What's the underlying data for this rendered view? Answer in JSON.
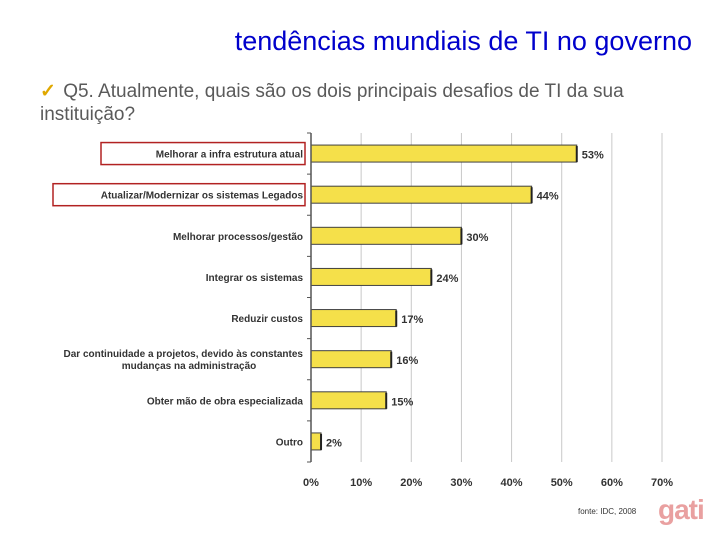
{
  "header": {
    "title": "tendências mundiais de TI no governo",
    "check_glyph": "✓",
    "question": "Q5. Atualmente, quais são os dois principais desafios de TI da sua instituição?"
  },
  "footer": {
    "source": "fonte: IDC, 2008",
    "logo": "gati"
  },
  "colors": {
    "bar_fill": "#f5e04a",
    "bar_stroke": "#404040",
    "highlight_box": "#b22222",
    "title": "#0000cc"
  },
  "chart_data": {
    "type": "bar",
    "orientation": "horizontal",
    "categories": [
      "Melhorar a infra estrutura atual",
      "Atualizar/Modernizar os sistemas Legados",
      "Melhorar processos/gestão",
      "Integrar os sistemas",
      "Reduzir custos",
      "Dar continuidade a projetos, devido às constantes mudanças na administração",
      "Obter mão de obra especializada",
      "Outro"
    ],
    "category_lines": [
      [
        "Melhorar a infra estrutura atual"
      ],
      [
        "Atualizar/Modernizar os sistemas Legados"
      ],
      [
        "Melhorar processos/gestão"
      ],
      [
        "Integrar os sistemas"
      ],
      [
        "Reduzir custos"
      ],
      [
        "Dar continuidade a projetos, devido às constantes",
        "mudanças na administração"
      ],
      [
        "Obter mão de obra especializada"
      ],
      [
        "Outro"
      ]
    ],
    "values": [
      53,
      44,
      30,
      24,
      17,
      16,
      15,
      2
    ],
    "value_labels": [
      "53%",
      "44%",
      "30%",
      "24%",
      "17%",
      "16%",
      "15%",
      "2%"
    ],
    "highlighted": [
      true,
      true,
      false,
      false,
      false,
      false,
      false,
      false
    ],
    "xlim": [
      0,
      70
    ],
    "xticks": [
      0,
      10,
      20,
      30,
      40,
      50,
      60,
      70
    ],
    "xtick_labels": [
      "0%",
      "10%",
      "20%",
      "30%",
      "40%",
      "50%",
      "60%",
      "70%"
    ],
    "grid": "vertical"
  }
}
